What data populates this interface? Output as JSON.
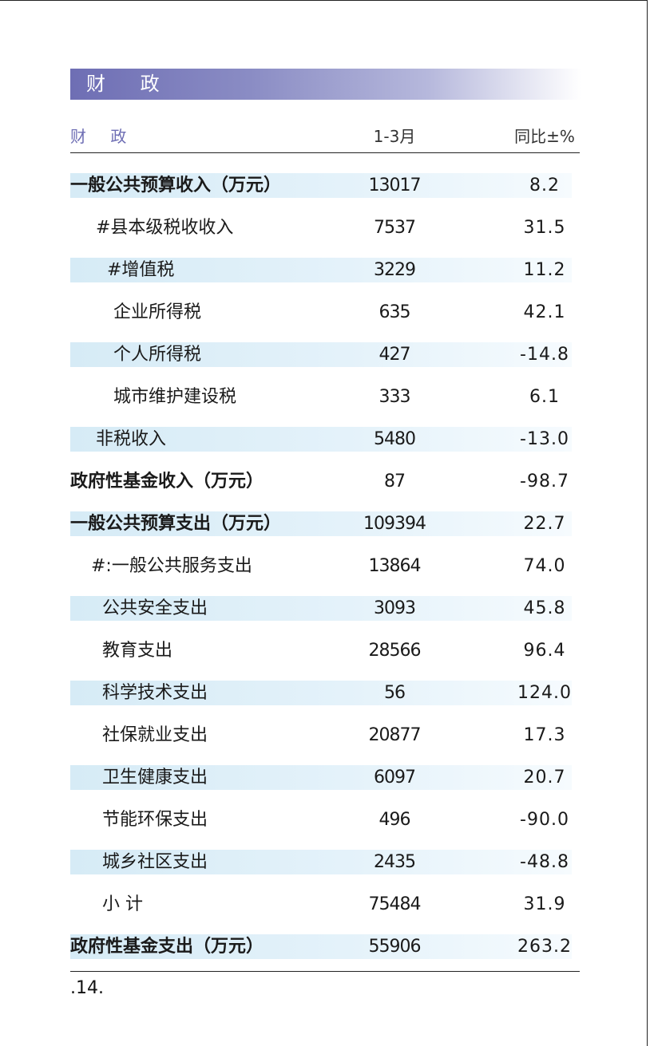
{
  "banner": {
    "title": "财 政"
  },
  "header": {
    "label": "财 政",
    "period": "1-3月",
    "yoy": "同比±%"
  },
  "rows": [
    {
      "label": "一般公共预算收入（万元）",
      "value": "13017",
      "yoy": "8.2"
    },
    {
      "label": "#县本级税收收入",
      "value": "7537",
      "yoy": "31.5"
    },
    {
      "label": "#增值税",
      "value": "3229",
      "yoy": "11.2"
    },
    {
      "label": "企业所得税",
      "value": "635",
      "yoy": "42.1"
    },
    {
      "label": "个人所得税",
      "value": "427",
      "yoy": "-14.8"
    },
    {
      "label": "城市维护建设税",
      "value": "333",
      "yoy": "6.1"
    },
    {
      "label": "非税收入",
      "value": "5480",
      "yoy": "-13.0"
    },
    {
      "label": "政府性基金收入（万元）",
      "value": "87",
      "yoy": "-98.7"
    },
    {
      "label": "一般公共预算支出（万元）",
      "value": "109394",
      "yoy": "22.7"
    },
    {
      "label": "#:一般公共服务支出",
      "value": "13864",
      "yoy": "74.0"
    },
    {
      "label": "公共安全支出",
      "value": "3093",
      "yoy": "45.8"
    },
    {
      "label": "教育支出",
      "value": "28566",
      "yoy": "96.4"
    },
    {
      "label": "科学技术支出",
      "value": "56",
      "yoy": "124.0"
    },
    {
      "label": "社保就业支出",
      "value": "20877",
      "yoy": "17.3"
    },
    {
      "label": "卫生健康支出",
      "value": "6097",
      "yoy": "20.7"
    },
    {
      "label": "节能环保支出",
      "value": "496",
      "yoy": "-90.0"
    },
    {
      "label": "城乡社区支出",
      "value": "2435",
      "yoy": "-48.8"
    },
    {
      "label": "小 计",
      "value": "75484",
      "yoy": "31.9"
    },
    {
      "label": "政府性基金支出（万元）",
      "value": "55906",
      "yoy": "263.2"
    }
  ],
  "footer": {
    "page": ".14."
  }
}
